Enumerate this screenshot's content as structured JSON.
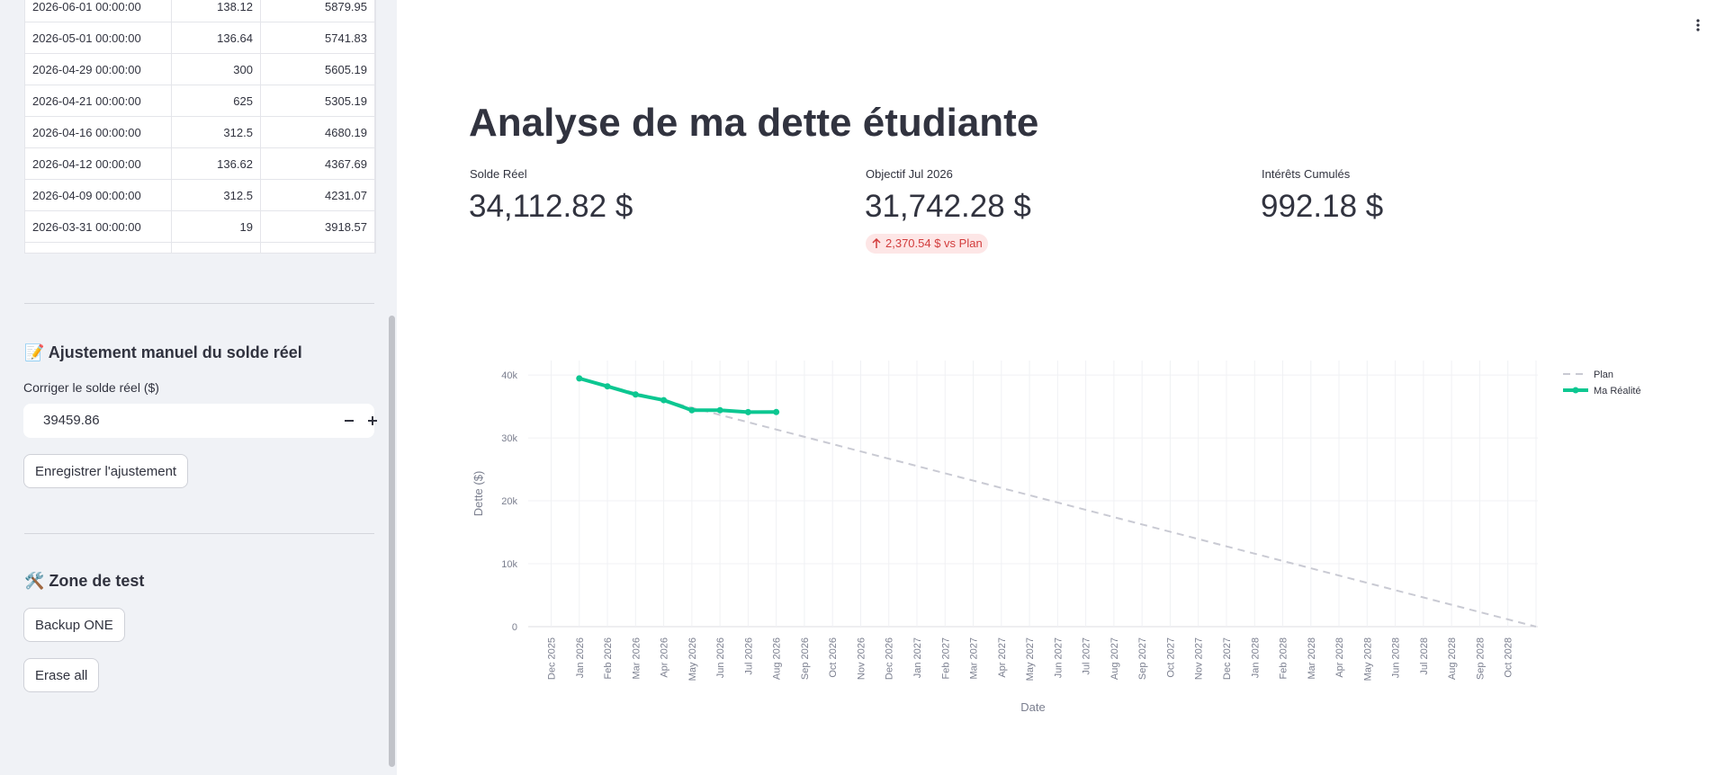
{
  "sidebar": {
    "table": {
      "rows": [
        [
          "2026-06-01 00:00:00",
          "138.12",
          "5879.95"
        ],
        [
          "2026-05-01 00:00:00",
          "136.64",
          "5741.83"
        ],
        [
          "2026-04-29 00:00:00",
          "300",
          "5605.19"
        ],
        [
          "2026-04-21 00:00:00",
          "625",
          "5305.19"
        ],
        [
          "2026-04-16 00:00:00",
          "312.5",
          "4680.19"
        ],
        [
          "2026-04-12 00:00:00",
          "136.62",
          "4367.69"
        ],
        [
          "2026-04-09 00:00:00",
          "312.5",
          "4231.07"
        ],
        [
          "2026-03-31 00:00:00",
          "19",
          "3918.57"
        ]
      ]
    },
    "adjust": {
      "heading": "📝 Ajustement manuel du solde réel",
      "input_label": "Corriger le solde réel ($)",
      "input_value": "39459.86",
      "button": "Enregistrer l'ajustement"
    },
    "test": {
      "heading": "🛠️ Zone de test",
      "buttons": [
        "Backup ONE",
        "Erase all"
      ]
    }
  },
  "header": {
    "title": "Analyse de ma dette étudiante"
  },
  "metrics": [
    {
      "label": "Solde Réel",
      "value": "34,112.82 $"
    },
    {
      "label": "Objectif Jul 2026",
      "value": "31,742.28 $",
      "delta": "2,370.54 $ vs Plan"
    },
    {
      "label": "Intérêts Cumulés",
      "value": "992.18 $"
    }
  ],
  "chart_data": {
    "type": "line",
    "xlabel": "Date",
    "ylabel": "Dette ($)",
    "x": [
      "Dec 2025",
      "Jan 2026",
      "Feb 2026",
      "Mar 2026",
      "Apr 2026",
      "May 2026",
      "Jun 2026",
      "Jul 2026",
      "Aug 2026",
      "Sep 2026",
      "Oct 2026",
      "Nov 2026",
      "Dec 2026",
      "Jan 2027",
      "Feb 2027",
      "Mar 2027",
      "Apr 2027",
      "May 2027",
      "Jun 2027",
      "Jul 2027",
      "Aug 2027",
      "Sep 2027",
      "Oct 2027",
      "Nov 2027",
      "Dec 2027",
      "Jan 2028",
      "Feb 2028",
      "Mar 2028",
      "Apr 2028",
      "May 2028",
      "Jun 2028",
      "Jul 2028",
      "Aug 2028",
      "Sep 2028",
      "Oct 2028",
      null
    ],
    "series": [
      {
        "name": "Plan",
        "color": "#c9cad3",
        "dash": true,
        "markers": false,
        "values": [
          null,
          39460,
          38299,
          37139,
          35978,
          34818,
          33657,
          32496,
          31336,
          30175,
          29015,
          27854,
          26693,
          25533,
          24372,
          23212,
          22051,
          20890,
          19730,
          18569,
          17409,
          16248,
          15087,
          13927,
          12766,
          11606,
          10445,
          9284,
          8124,
          6963,
          5803,
          4642,
          3481,
          2321,
          1160,
          0
        ]
      },
      {
        "name": "Ma Réalité",
        "color": "#0cc791",
        "dash": false,
        "markers": true,
        "values": [
          null,
          39460,
          38200,
          36900,
          36000,
          34400,
          34400,
          34100,
          34113,
          null,
          null,
          null,
          null,
          null,
          null,
          null,
          null,
          null,
          null,
          null,
          null,
          null,
          null,
          null,
          null,
          null,
          null,
          null,
          null,
          null,
          null,
          null,
          null,
          null,
          null,
          null
        ]
      }
    ],
    "ylim": [
      0,
      42300
    ],
    "yticks": [
      0,
      {
        "value": 10000,
        "label": "10k"
      },
      {
        "value": 20000,
        "label": "20k"
      },
      {
        "value": 30000,
        "label": "30k"
      },
      {
        "value": 40000,
        "label": "40k"
      }
    ],
    "grid": true,
    "legend": "top-right"
  }
}
